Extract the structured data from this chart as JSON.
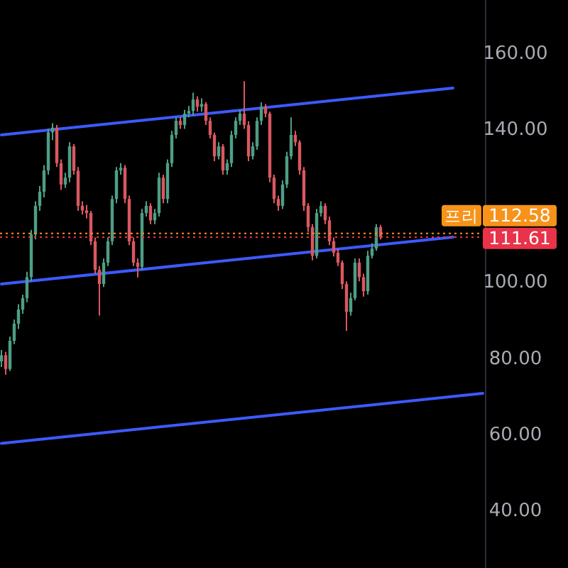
{
  "chart_data": {
    "type": "candlestick",
    "categories": [
      null,
      null,
      null,
      null,
      null,
      null,
      null,
      null,
      null,
      null,
      null,
      null,
      null,
      null,
      null,
      null,
      null,
      null,
      null,
      null,
      null,
      null,
      null,
      null,
      null,
      null,
      null,
      null,
      null,
      null,
      null,
      null,
      null,
      null,
      null,
      null,
      null,
      null,
      null,
      null,
      null,
      null,
      null,
      null,
      null,
      null,
      null,
      null,
      null,
      null,
      null,
      null,
      null,
      null,
      null,
      null,
      null,
      null,
      null,
      null,
      null,
      null,
      null,
      null,
      null,
      null,
      null,
      null,
      null,
      null,
      null,
      null,
      null,
      null,
      null,
      null,
      null,
      null,
      null,
      null,
      null,
      null,
      null,
      null,
      null,
      null,
      null,
      null,
      null,
      null,
      null,
      null,
      null,
      null,
      null,
      null,
      null,
      null,
      null,
      null,
      null,
      null,
      null,
      null,
      null,
      null,
      null,
      null,
      null,
      null,
      null,
      null,
      null,
      null
    ],
    "ylim": [
      24.8,
      173.8
    ],
    "tick_labels": "y",
    "grid": false,
    "yticks": [
      {
        "value": 40,
        "label": "40.00"
      },
      {
        "value": 60,
        "label": "60.00"
      },
      {
        "value": 80,
        "label": "80.00"
      },
      {
        "value": 100,
        "label": "100.00"
      },
      {
        "value": 140,
        "label": "140.00"
      },
      {
        "value": 160,
        "label": "160.00"
      }
    ],
    "series": [
      {
        "type": "line",
        "values": [
          138.4,
          null,
          null,
          null,
          null,
          null,
          null,
          null,
          null,
          null,
          null,
          null,
          null,
          null,
          null,
          null,
          null,
          null,
          null,
          null,
          null,
          null,
          null,
          null,
          null,
          null,
          null,
          null,
          null,
          null,
          null,
          null,
          null,
          null,
          null,
          null,
          null,
          null,
          null,
          null,
          null,
          null,
          null,
          null,
          null,
          null,
          null,
          null,
          null,
          null,
          null,
          null,
          null,
          null,
          null,
          null,
          null,
          null,
          null,
          null,
          null,
          null,
          null,
          null,
          null,
          null,
          null,
          null,
          null,
          null,
          null,
          null,
          null,
          null,
          null,
          null,
          null,
          null,
          null,
          null,
          null,
          null,
          null,
          null,
          null,
          null,
          null,
          null,
          null,
          null,
          null,
          null,
          null,
          null,
          null,
          null,
          null,
          null,
          null,
          null,
          null,
          null,
          null,
          null,
          null,
          null,
          150.7,
          null,
          null,
          null,
          null,
          null,
          null,
          null
        ],
        "color": "#3d5afe"
      },
      {
        "type": "line",
        "values": [
          99.3,
          null,
          null,
          null,
          null,
          null,
          null,
          null,
          null,
          null,
          null,
          null,
          null,
          null,
          null,
          null,
          null,
          null,
          null,
          null,
          null,
          null,
          null,
          null,
          null,
          null,
          null,
          null,
          null,
          null,
          null,
          null,
          null,
          null,
          null,
          null,
          null,
          null,
          null,
          null,
          null,
          null,
          null,
          null,
          null,
          null,
          null,
          null,
          null,
          null,
          null,
          null,
          null,
          null,
          null,
          null,
          null,
          null,
          null,
          null,
          null,
          null,
          null,
          null,
          null,
          null,
          null,
          null,
          null,
          null,
          null,
          null,
          null,
          null,
          null,
          null,
          null,
          null,
          null,
          null,
          null,
          null,
          null,
          null,
          null,
          null,
          null,
          null,
          null,
          null,
          null,
          null,
          null,
          null,
          null,
          null,
          null,
          null,
          null,
          null,
          null,
          null,
          null,
          null,
          null,
          null,
          111.6,
          null,
          null,
          null,
          null,
          null,
          null,
          null
        ],
        "color": "#3d5afe"
      },
      {
        "type": "line",
        "values": [
          57.5,
          null,
          null,
          null,
          null,
          null,
          null,
          null,
          null,
          null,
          null,
          null,
          null,
          null,
          null,
          null,
          null,
          null,
          null,
          null,
          null,
          null,
          null,
          null,
          null,
          null,
          null,
          null,
          null,
          null,
          null,
          null,
          null,
          null,
          null,
          null,
          null,
          null,
          null,
          null,
          null,
          null,
          null,
          null,
          null,
          null,
          null,
          null,
          null,
          null,
          null,
          null,
          null,
          null,
          null,
          null,
          null,
          null,
          null,
          null,
          null,
          null,
          null,
          null,
          null,
          null,
          null,
          null,
          null,
          null,
          null,
          null,
          null,
          null,
          null,
          null,
          null,
          null,
          null,
          null,
          null,
          null,
          null,
          null,
          null,
          null,
          null,
          null,
          null,
          null,
          null,
          null,
          null,
          null,
          null,
          null,
          null,
          null,
          null,
          null,
          null,
          null,
          null,
          null,
          null,
          null,
          null,
          null,
          null,
          null,
          null,
          null,
          null,
          70.6
        ],
        "color": "#3d5afe"
      },
      {
        "ohlc": [
          [
            79,
            82,
            77.5,
            80.6
          ],
          [
            80.6,
            81.5,
            75.5,
            77
          ],
          [
            77,
            85.5,
            76.5,
            84.4
          ],
          [
            84.4,
            90,
            83.5,
            88.9
          ],
          [
            88.9,
            94,
            87.5,
            92.6
          ],
          [
            92.6,
            96.5,
            91.5,
            95.6
          ],
          [
            95.6,
            102.5,
            94.5,
            101.1
          ],
          [
            101.1,
            113.5,
            100,
            112.3
          ],
          [
            112.3,
            121,
            111,
            119.8
          ],
          [
            119.8,
            125,
            118.5,
            123.5
          ],
          [
            123.5,
            130.5,
            122,
            129.1
          ],
          [
            129.1,
            140,
            128,
            139.1
          ],
          [
            139.1,
            141.5,
            137,
            140.3
          ],
          [
            140.3,
            141,
            130,
            131
          ],
          [
            131,
            132,
            124,
            125.4
          ],
          [
            125.4,
            128.5,
            124.5,
            127.2
          ],
          [
            127.2,
            136.5,
            126,
            135.4
          ],
          [
            135.4,
            136,
            128,
            129
          ],
          [
            129,
            130,
            118.5,
            119.8
          ],
          [
            119.8,
            121,
            117.5,
            118.6
          ],
          [
            118.6,
            120,
            116.5,
            117.9
          ],
          [
            117.9,
            118.5,
            109.5,
            110.5
          ],
          [
            110.5,
            111.5,
            102,
            103
          ],
          [
            103,
            104,
            91,
            99.3
          ],
          [
            99.3,
            106,
            98.5,
            104.9
          ],
          [
            104.9,
            111.5,
            104,
            110.5
          ],
          [
            110.5,
            122.5,
            109.5,
            121.6
          ],
          [
            121.6,
            130,
            120.5,
            129.1
          ],
          [
            129.1,
            131,
            128,
            129.8
          ],
          [
            129.8,
            130.5,
            120.5,
            121.6
          ],
          [
            121.6,
            122.5,
            109.5,
            110.5
          ],
          [
            110.5,
            111.5,
            104,
            104.9
          ],
          [
            104.9,
            106,
            101,
            103.8
          ],
          [
            103.8,
            119,
            103,
            117.9
          ],
          [
            117.9,
            121,
            117,
            119.8
          ],
          [
            119.8,
            120.5,
            115,
            116
          ],
          [
            116,
            119,
            115,
            117.9
          ],
          [
            117.9,
            128.5,
            117,
            127.2
          ],
          [
            127.2,
            128,
            120.5,
            121.6
          ],
          [
            121.6,
            132,
            120.5,
            131
          ],
          [
            131,
            139.5,
            130,
            138.4
          ],
          [
            138.4,
            143,
            137.5,
            142.1
          ],
          [
            142.1,
            143,
            140,
            141
          ],
          [
            141,
            145,
            140,
            144
          ],
          [
            144,
            146,
            143,
            144.7
          ],
          [
            144.7,
            149.5,
            143.5,
            147.7
          ],
          [
            147.7,
            148.5,
            144.5,
            145.8
          ],
          [
            145.8,
            148,
            144.5,
            146.5
          ],
          [
            146.5,
            147,
            141,
            142.1
          ],
          [
            142.1,
            143,
            137.5,
            138.4
          ],
          [
            138.4,
            139,
            131.5,
            132.8
          ],
          [
            132.8,
            136.5,
            132,
            135.4
          ],
          [
            135.4,
            136,
            128,
            129.1
          ],
          [
            129.1,
            132,
            128,
            131
          ],
          [
            131,
            139.5,
            130,
            138.4
          ],
          [
            138.4,
            143,
            137.5,
            142.1
          ],
          [
            142.1,
            145,
            141,
            144
          ],
          [
            144,
            152.5,
            140,
            141
          ],
          [
            141,
            142,
            131.5,
            132.8
          ],
          [
            132.8,
            136.5,
            132,
            135.4
          ],
          [
            135.4,
            143,
            134.5,
            142.1
          ],
          [
            142.1,
            147,
            141,
            145.8
          ],
          [
            145.8,
            146.5,
            143,
            144
          ],
          [
            144,
            144.5,
            126,
            127.2
          ],
          [
            127.2,
            128,
            120.5,
            121.6
          ],
          [
            121.6,
            122.5,
            118.5,
            119.8
          ],
          [
            119.8,
            126.5,
            119,
            125.4
          ],
          [
            125.4,
            134,
            124.5,
            132.8
          ],
          [
            132.8,
            143,
            132,
            138.4
          ],
          [
            138.4,
            139.5,
            135.5,
            136.5
          ],
          [
            136.5,
            137,
            128,
            129.1
          ],
          [
            129.1,
            130,
            118.5,
            119.8
          ],
          [
            119.8,
            120.5,
            113,
            114.2
          ],
          [
            114.2,
            115,
            105.5,
            106.7
          ],
          [
            106.7,
            119,
            106,
            117.9
          ],
          [
            117.9,
            121,
            117,
            119.8
          ],
          [
            119.8,
            120.5,
            115,
            116
          ],
          [
            116,
            117,
            109.5,
            110.5
          ],
          [
            110.5,
            111.5,
            106.5,
            107.5
          ],
          [
            107.5,
            108.5,
            104,
            104.9
          ],
          [
            104.9,
            105.5,
            98,
            99.3
          ],
          [
            99.3,
            100,
            87,
            92
          ],
          [
            92,
            97,
            91,
            95.6
          ],
          [
            95.6,
            106,
            95,
            104.9
          ],
          [
            104.9,
            106,
            100,
            101.1
          ],
          [
            101.1,
            102,
            96,
            97.4
          ],
          [
            97.4,
            108,
            96.5,
            106.7
          ],
          [
            106.7,
            110,
            106,
            108.6
          ],
          [
            108.6,
            115,
            108,
            114.2
          ],
          [
            114.2,
            114.8,
            111,
            111.61
          ],
          null,
          null,
          null,
          null,
          null,
          null,
          null,
          null,
          null,
          null,
          null,
          null,
          null,
          null,
          null,
          null,
          null,
          null,
          null,
          null,
          null,
          null,
          null,
          null
        ],
        "colors": [
          "#4e9e85",
          "#d9585f",
          "#4e9e85",
          "#4e9e85",
          "#4e9e85",
          "#4e9e85",
          "#4e9e85",
          "#4e9e85",
          "#4e9e85",
          "#4e9e85",
          "#4e9e85",
          "#4e9e85",
          "#4e9e85",
          "#d9585f",
          "#d9585f",
          "#4e9e85",
          "#4e9e85",
          "#d9585f",
          "#d9585f",
          "#d9585f",
          "#d9585f",
          "#d9585f",
          "#d9585f",
          "#d9585f",
          "#4e9e85",
          "#4e9e85",
          "#4e9e85",
          "#4e9e85",
          "#4e9e85",
          "#d9585f",
          "#d9585f",
          "#d9585f",
          "#d9585f",
          "#4e9e85",
          "#4e9e85",
          "#d9585f",
          "#4e9e85",
          "#4e9e85",
          "#d9585f",
          "#4e9e85",
          "#4e9e85",
          "#4e9e85",
          "#d9585f",
          "#4e9e85",
          "#4e9e85",
          "#4e9e85",
          "#d9585f",
          "#4e9e85",
          "#d9585f",
          "#d9585f",
          "#d9585f",
          "#4e9e85",
          "#d9585f",
          "#4e9e85",
          "#4e9e85",
          "#4e9e85",
          "#4e9e85",
          "#d9585f",
          "#d9585f",
          "#4e9e85",
          "#4e9e85",
          "#4e9e85",
          "#d9585f",
          "#d9585f",
          "#d9585f",
          "#d9585f",
          "#4e9e85",
          "#4e9e85",
          "#4e9e85",
          "#d9585f",
          "#d9585f",
          "#d9585f",
          "#d9585f",
          "#d9585f",
          "#4e9e85",
          "#4e9e85",
          "#d9585f",
          "#d9585f",
          "#d9585f",
          "#d9585f",
          "#d9585f",
          "#d9585f",
          "#4e9e85",
          "#4e9e85",
          "#d9585f",
          "#d9585f",
          "#4e9e85",
          "#4e9e85",
          "#4e9e85",
          "#d9585f",
          null,
          null,
          null,
          null,
          null,
          null,
          null,
          null,
          null,
          null,
          null,
          null,
          null,
          null,
          null,
          null,
          null,
          null,
          null,
          null,
          null,
          null,
          null,
          null
        ]
      }
    ],
    "ref_lines": [
      {
        "axis": "y",
        "value": 112.58,
        "label": "112.58",
        "color": "#f7931a",
        "line_style": "dotted"
      },
      {
        "axis": "y",
        "value": 111.61,
        "label": "111.61",
        "color": "#e8334a",
        "line_style": "dotted"
      }
    ],
    "annotations": [
      "프리"
    ]
  }
}
